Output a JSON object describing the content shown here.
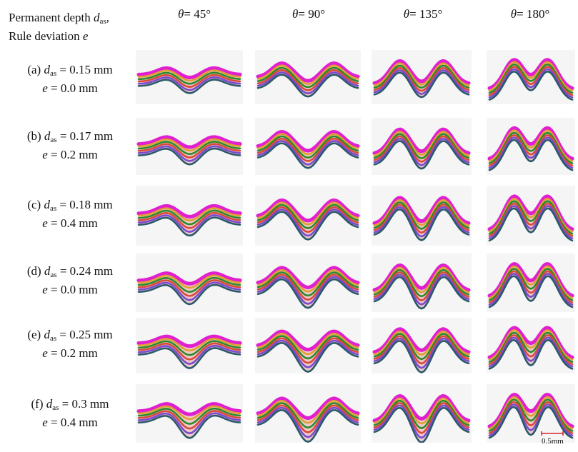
{
  "header": {
    "line1_prefix": "Permanent depth ",
    "line1_var": "d",
    "line1_sub": "as",
    "line1_suffix": ",",
    "line2_prefix": "Rule deviation ",
    "line2_var": "e"
  },
  "columns": [
    {
      "theta_symbol": "θ",
      "value": "= 45°"
    },
    {
      "theta_symbol": "θ",
      "value": "= 90°"
    },
    {
      "theta_symbol": "θ",
      "value": "= 135°"
    },
    {
      "theta_symbol": "θ",
      "value": "= 180°"
    }
  ],
  "rows": [
    {
      "tag": "(a) ",
      "d_value": " = 0.15 mm",
      "e_value": " = 0.0 mm"
    },
    {
      "tag": "(b) ",
      "d_value": " = 0.17 mm",
      "e_value": " = 0.2 mm"
    },
    {
      "tag": "(c) ",
      "d_value": " = 0.18 mm",
      "e_value": " = 0.4 mm"
    },
    {
      "tag": "(d) ",
      "d_value": " = 0.24 mm",
      "e_value": " = 0.0 mm"
    },
    {
      "tag": "(e) ",
      "d_value": " = 0.25 mm",
      "e_value": " = 0.2 mm"
    },
    {
      "tag": "(f) ",
      "d_value": " = 0.3 mm",
      "e_value": " = 0.4 mm"
    }
  ],
  "scale_bar": {
    "label": "0.5mm",
    "color": "#d62728"
  },
  "colors": {
    "layers": [
      "#e020d0",
      "#e0a030",
      "#2c8a2c",
      "#d84a3a",
      "#7a4ad0",
      "#2a5a6a"
    ],
    "hatch": "#e9a6a6"
  }
}
